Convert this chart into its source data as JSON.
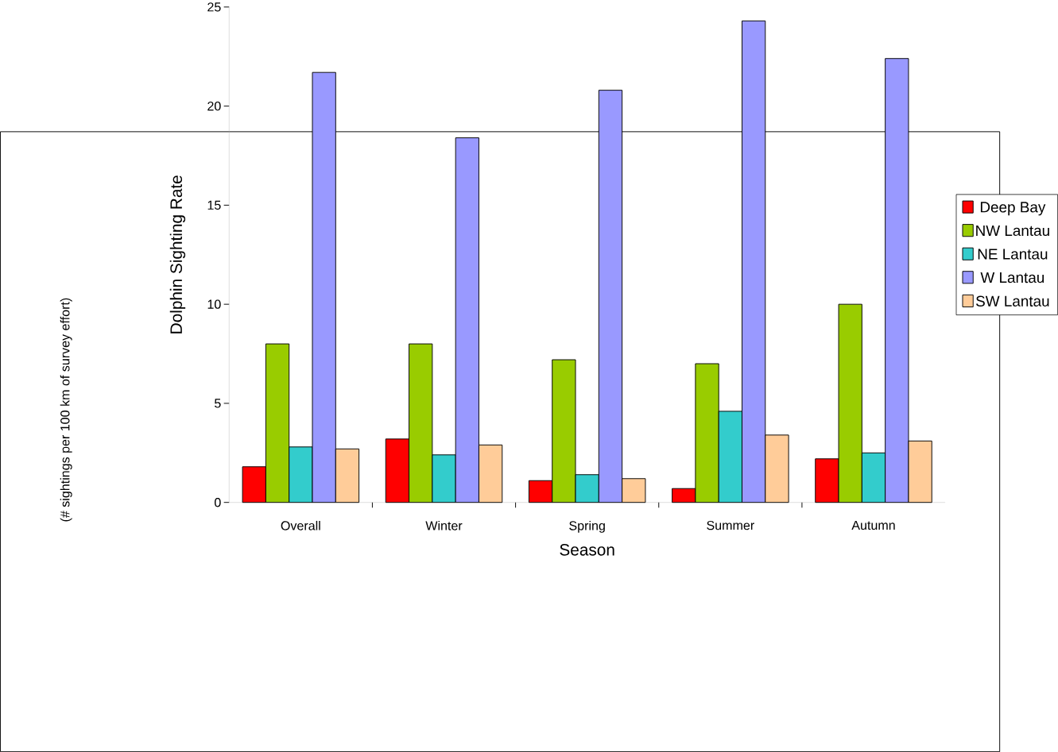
{
  "chart_data": {
    "type": "bar",
    "xlabel": "Season",
    "ylabel": "Dolphin Sighting Rate",
    "annotations": [
      "(# sightings per 100 km of survey effort)"
    ],
    "categories": [
      "Overall",
      "Winter",
      "Spring",
      "Summer",
      "Autumn"
    ],
    "series": [
      {
        "name": "Deep Bay",
        "color": "#ff0000",
        "values": [
          1.8,
          3.2,
          1.1,
          0.7,
          2.2
        ]
      },
      {
        "name": "NW Lantau",
        "color": "#99cc00",
        "values": [
          8.0,
          8.0,
          7.2,
          7.0,
          10.0
        ]
      },
      {
        "name": "NE Lantau",
        "color": "#33cccc",
        "values": [
          2.8,
          2.4,
          1.4,
          4.6,
          2.5
        ]
      },
      {
        "name": "W Lantau",
        "color": "#9999ff",
        "values": [
          21.7,
          18.4,
          20.8,
          24.3,
          22.4
        ]
      },
      {
        "name": "SW Lantau",
        "color": "#ffcc99",
        "values": [
          2.7,
          2.9,
          1.2,
          3.4,
          3.1
        ]
      }
    ],
    "ylim": [
      0,
      25
    ],
    "yticks": [
      0,
      5,
      10,
      15,
      20,
      25
    ],
    "grid": false,
    "legend": "right"
  }
}
